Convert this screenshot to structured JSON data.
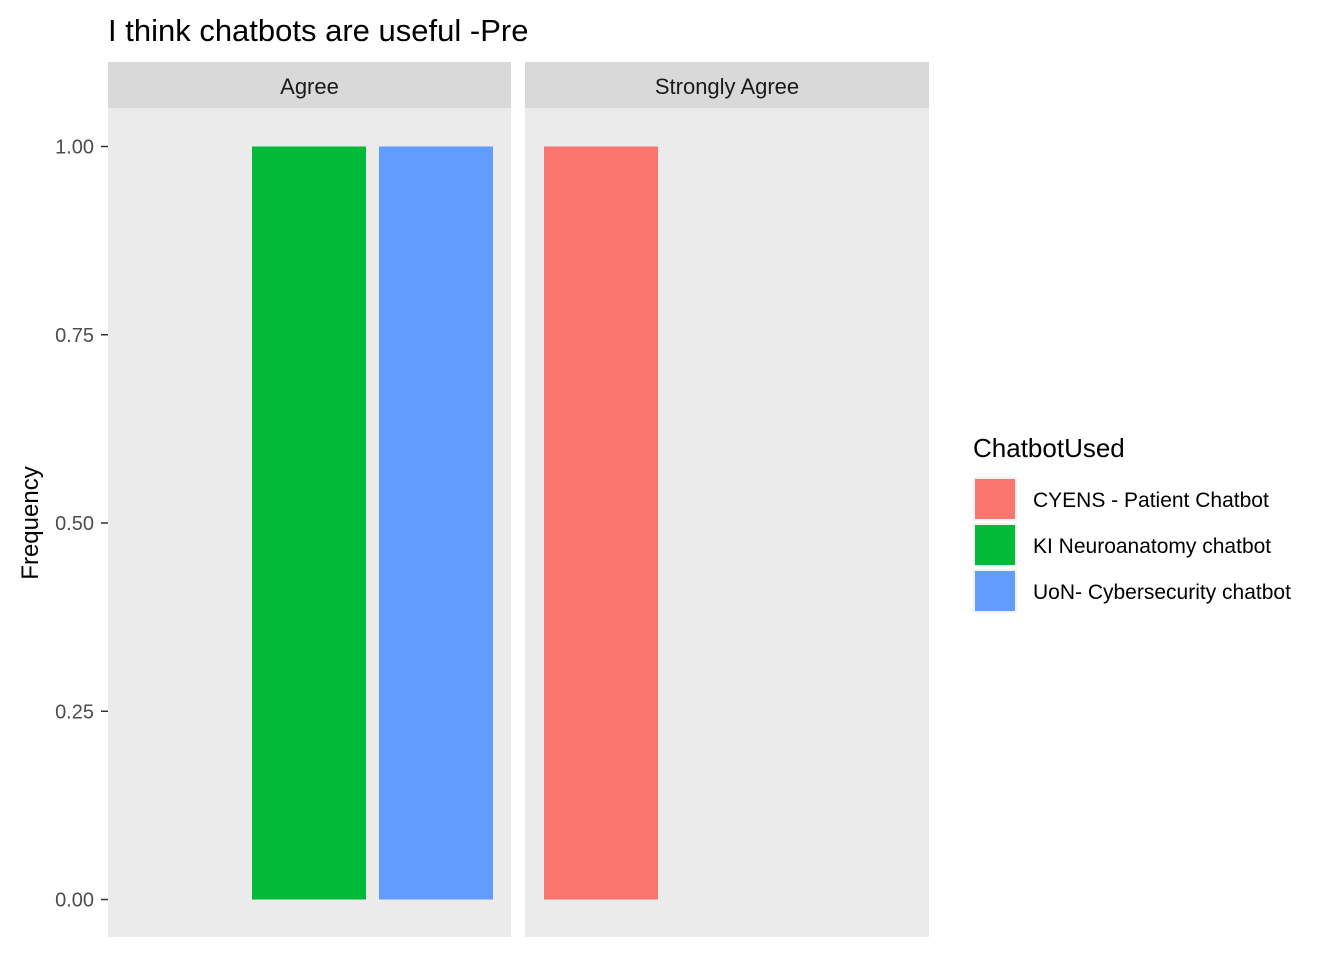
{
  "chart_data": {
    "type": "bar",
    "title": "I think chatbots are useful -Pre",
    "xlabel": "",
    "ylabel": "Frequency",
    "ylim": [
      0,
      1.05
    ],
    "yticks": [
      0,
      0.25,
      0.5,
      0.75,
      1.0
    ],
    "ytick_labels": [
      "0.00",
      "0.25",
      "0.50",
      "0.75",
      "1.00"
    ],
    "grid": false,
    "facets": [
      {
        "label": "Agree",
        "categories": [
          "KI Neuroanatomy chatbot",
          "UoN- Cybersecurity chatbot"
        ],
        "values": [
          1,
          1
        ]
      },
      {
        "label": "Strongly Agree",
        "categories": [
          "CYENS - Patient Chatbot"
        ],
        "values": [
          1
        ]
      }
    ],
    "legend": {
      "title": "ChatbotUsed",
      "position": "right",
      "entries": [
        {
          "name": "CYENS - Patient Chatbot",
          "color": "#F8766D"
        },
        {
          "name": "KI Neuroanatomy chatbot",
          "color": "#00BA38"
        },
        {
          "name": "UoN- Cybersecurity chatbot",
          "color": "#619CFF"
        }
      ]
    }
  }
}
